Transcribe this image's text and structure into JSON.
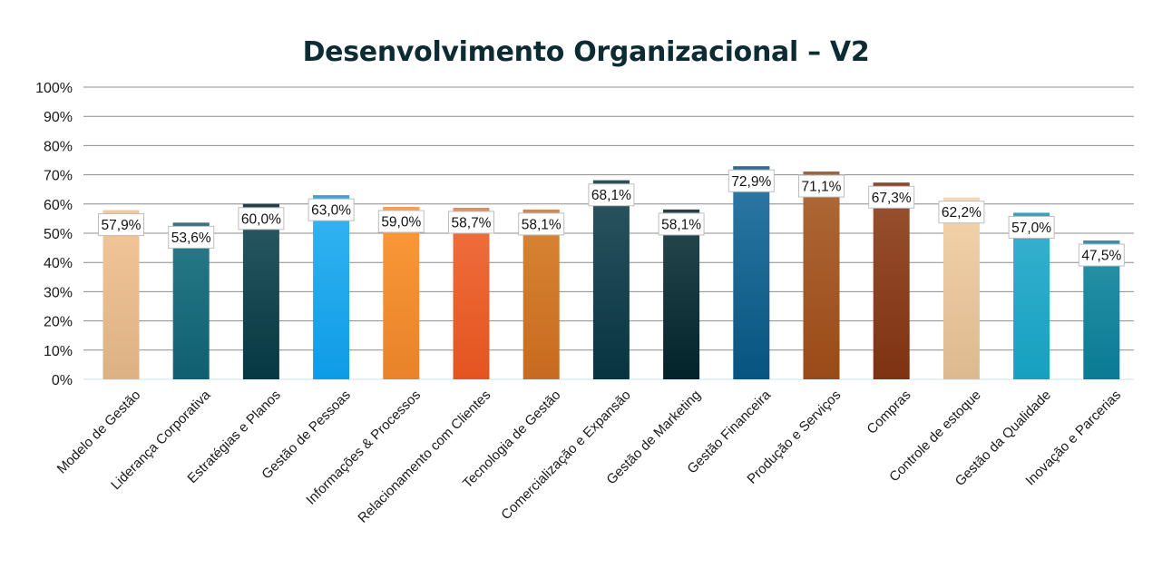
{
  "chart_data": {
    "type": "bar",
    "title": "Desenvolvimento Organizacional – V2",
    "xlabel": "",
    "ylabel": "",
    "ylim": [
      0,
      100
    ],
    "yticks": [
      "0%",
      "10%",
      "20%",
      "30%",
      "40%",
      "50%",
      "60%",
      "70%",
      "80%",
      "90%",
      "100%"
    ],
    "grid": true,
    "legend": "none",
    "categories": [
      "Modelo de Gestão",
      "Liderança Corporativa",
      "Estratégias e Planos",
      "Gestão de Pessoas",
      "Informações & Processos",
      "Relacionamento com Clientes",
      "Tecnologia de Gestão",
      "Comercialização e Expansão",
      "Gestão de Marketing",
      "Gestão Financeira",
      "Produção e Serviços",
      "Compras",
      "Controle de estoque",
      "Gestão da Qualidade",
      "Inovação e Parcerias"
    ],
    "values": [
      57.9,
      53.6,
      60.0,
      63.0,
      59.0,
      58.7,
      58.1,
      68.1,
      58.1,
      72.9,
      71.1,
      67.3,
      62.2,
      57.0,
      47.5
    ],
    "data_labels": [
      "57,9%",
      "53,6%",
      "60,0%",
      "63,0%",
      "59,0%",
      "58,7%",
      "58,1%",
      "68,1%",
      "58,1%",
      "72,9%",
      "71,1%",
      "67,3%",
      "62,2%",
      "57,0%",
      "47,5%"
    ],
    "colors": [
      [
        "#f3c79a",
        "#dcb183",
        "#efc99f"
      ],
      [
        "#2a7c8a",
        "#0f5f70",
        "#3a7280"
      ],
      [
        "#2b5a63",
        "#063843",
        "#243f47"
      ],
      [
        "#36b6f2",
        "#0e9be6",
        "#3aa6d8"
      ],
      [
        "#fb9a3a",
        "#e9822a",
        "#f0a25c"
      ],
      [
        "#f07040",
        "#e4541f",
        "#e88a66"
      ],
      [
        "#d98636",
        "#c86a1f",
        "#c98a55"
      ],
      [
        "#2e5663",
        "#073340",
        "#2c4f5a"
      ],
      [
        "#2a4a52",
        "#03232b",
        "#2b3d42"
      ],
      [
        "#2f7aa6",
        "#06547f",
        "#2d6d90"
      ],
      [
        "#b06a3a",
        "#9a4a16",
        "#9c6446"
      ],
      [
        "#9a5230",
        "#7e3212",
        "#8a4a30"
      ],
      [
        "#f5d3ac",
        "#dcb98e",
        "#f4d8b8"
      ],
      [
        "#38b2cf",
        "#16a0c0",
        "#3ea0bd"
      ],
      [
        "#2a93a9",
        "#0a7b93",
        "#3a8fa2"
      ]
    ]
  }
}
